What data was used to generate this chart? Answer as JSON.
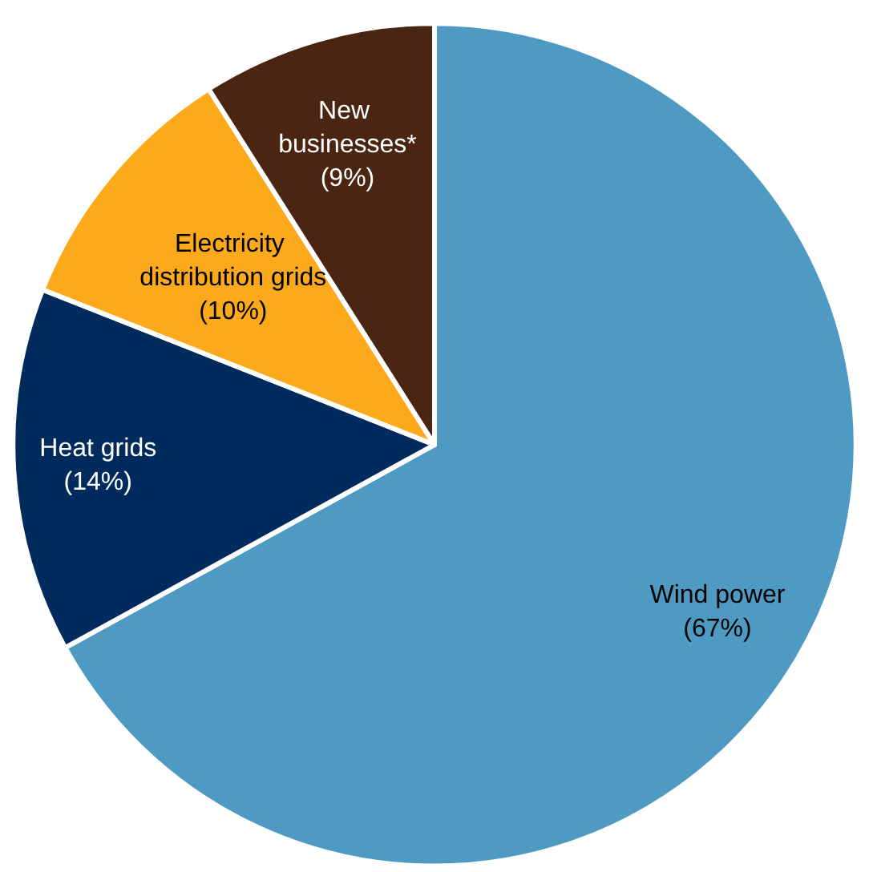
{
  "chart_data": {
    "type": "pie",
    "categories": [
      "Wind power",
      "Heat grids",
      "Electricity distribution grids",
      "New businesses*"
    ],
    "values": [
      67,
      14,
      10,
      9
    ],
    "colors": [
      "#4f9ac3",
      "#002b5c",
      "#fcaa1b",
      "#4a2511"
    ],
    "value_labels": [
      "(67%)",
      "(14%)",
      "(10%)",
      "(9%)"
    ],
    "legend": false
  }
}
